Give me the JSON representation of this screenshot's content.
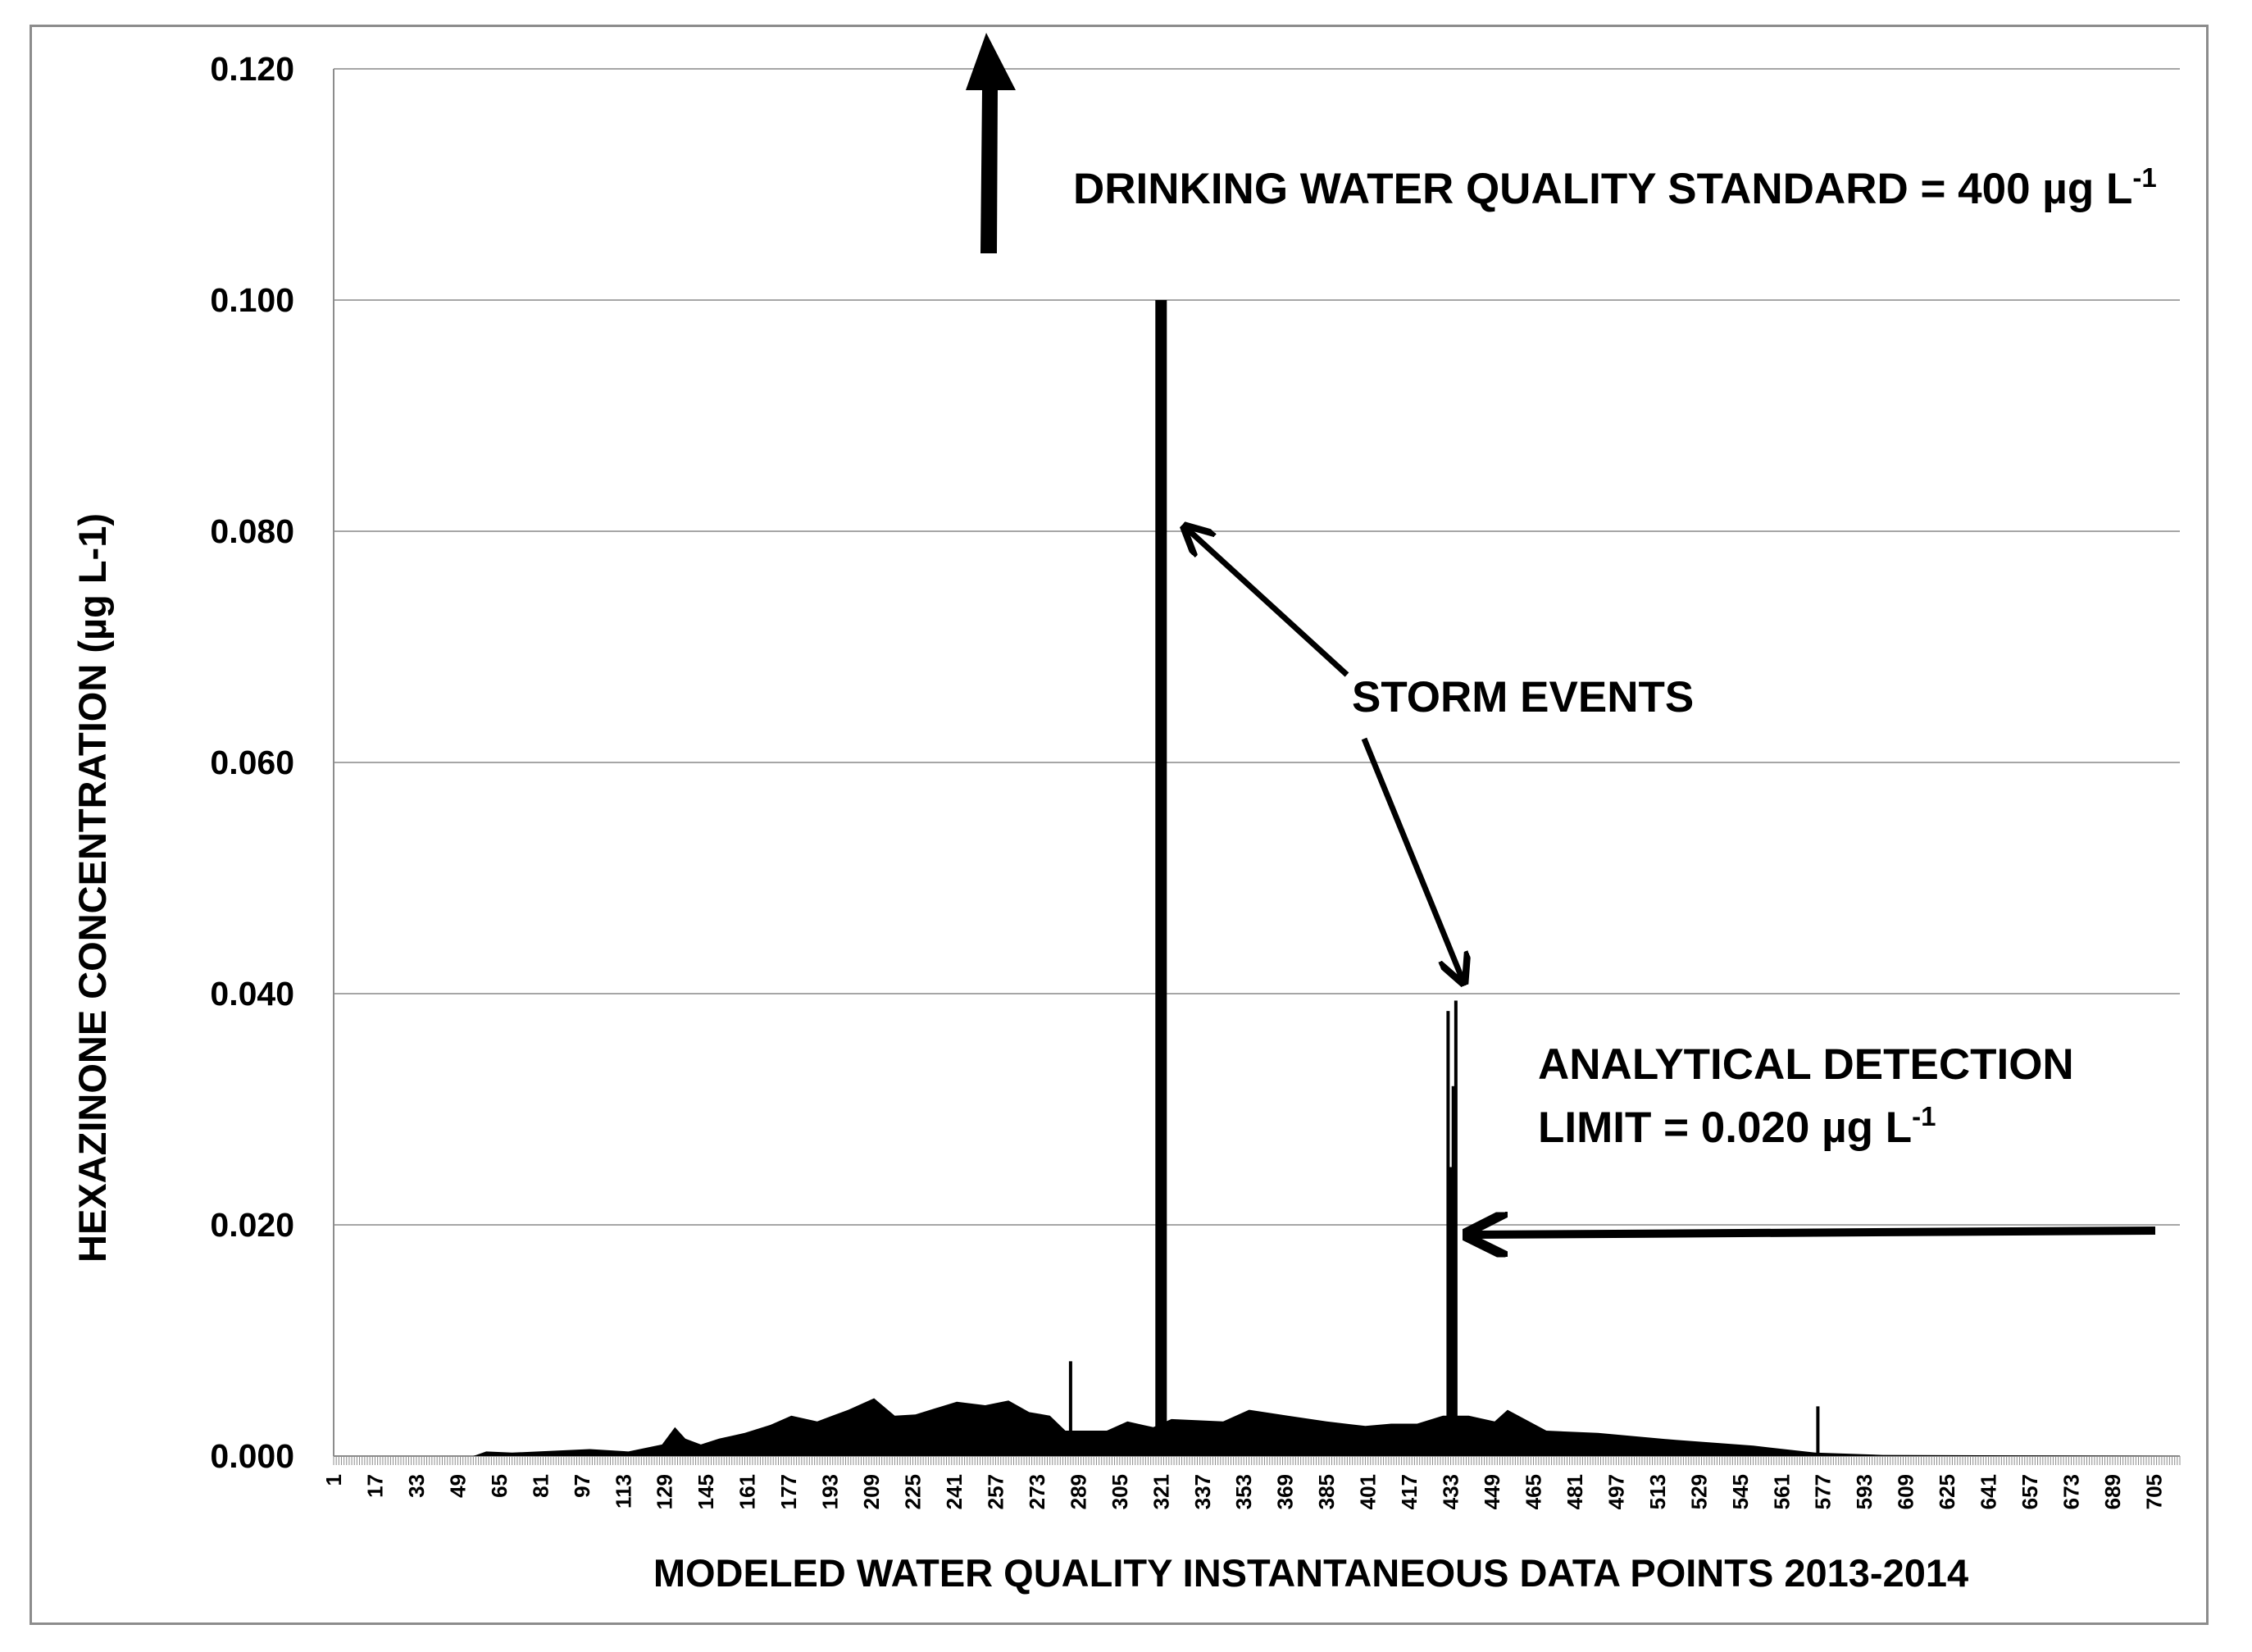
{
  "chart_data": {
    "type": "bar",
    "xlabel": "MODELED WATER QUALITY INSTANTANEOUS DATA POINTS 2013-2014",
    "ylabel": "HEXAZINONE CONCENTRATION  (µg L-1)",
    "ylim": [
      0,
      0.12
    ],
    "y_ticks": [
      "0.000",
      "0.020",
      "0.040",
      "0.060",
      "0.080",
      "0.100",
      "0.120"
    ],
    "y_tick_values": [
      0,
      0.02,
      0.04,
      0.06,
      0.08,
      0.1,
      0.12
    ],
    "x_range": [
      1,
      715
    ],
    "x_tick_labels": [
      "1",
      "17",
      "33",
      "49",
      "65",
      "81",
      "97",
      "113",
      "129",
      "145",
      "161",
      "177",
      "193",
      "209",
      "225",
      "241",
      "257",
      "273",
      "289",
      "305",
      "321",
      "337",
      "353",
      "369",
      "385",
      "401",
      "417",
      "433",
      "449",
      "465",
      "481",
      "497",
      "513",
      "529",
      "545",
      "561",
      "577",
      "593",
      "609",
      "625",
      "641",
      "657",
      "673",
      "689",
      "705"
    ],
    "grid": true,
    "legend": "none",
    "bar_color": "#000000",
    "baseline_profile": {
      "x": [
        1,
        55,
        60,
        70,
        100,
        115,
        128,
        133,
        137,
        143,
        150,
        160,
        170,
        178,
        188,
        200,
        210,
        218,
        226,
        242,
        253,
        262,
        270,
        278,
        284,
        300,
        308,
        318,
        325,
        345,
        355,
        370,
        385,
        400,
        410,
        420,
        430,
        440,
        450,
        455,
        470,
        490,
        520,
        550,
        570,
        574,
        600,
        715
      ],
      "values": [
        0,
        0,
        0.0004,
        0.0003,
        0.0006,
        0.0004,
        0.001,
        0.0025,
        0.0015,
        0.001,
        0.0015,
        0.002,
        0.0027,
        0.0035,
        0.003,
        0.004,
        0.005,
        0.0035,
        0.0036,
        0.0047,
        0.0044,
        0.0048,
        0.0038,
        0.0035,
        0.0022,
        0.0022,
        0.003,
        0.0025,
        0.0032,
        0.003,
        0.004,
        0.0035,
        0.003,
        0.0026,
        0.0028,
        0.0028,
        0.0035,
        0.0035,
        0.003,
        0.004,
        0.0022,
        0.002,
        0.0014,
        0.0009,
        0.0004,
        0.0003,
        0.0001,
        0
      ]
    },
    "spikes": [
      {
        "x": 286,
        "value": 0.0082
      },
      {
        "x": 321,
        "value": 0.1
      },
      {
        "x": 432,
        "value": 0.0385
      },
      {
        "x": 433,
        "value": 0.025
      },
      {
        "x": 434,
        "value": 0.032
      },
      {
        "x": 435,
        "value": 0.0394
      },
      {
        "x": 575,
        "value": 0.0043
      }
    ],
    "annotations": {
      "standard": {
        "text": "DRINKING WATER QUALITY STANDARD = 400 µg L",
        "superscript": "-1"
      },
      "storm": {
        "text": "STORM EVENTS"
      },
      "detection_line1": {
        "text": "ANALYTICAL DETECTION"
      },
      "detection_line2": {
        "text": "LIMIT = 0.020 µg L",
        "superscript": "-1"
      }
    }
  }
}
